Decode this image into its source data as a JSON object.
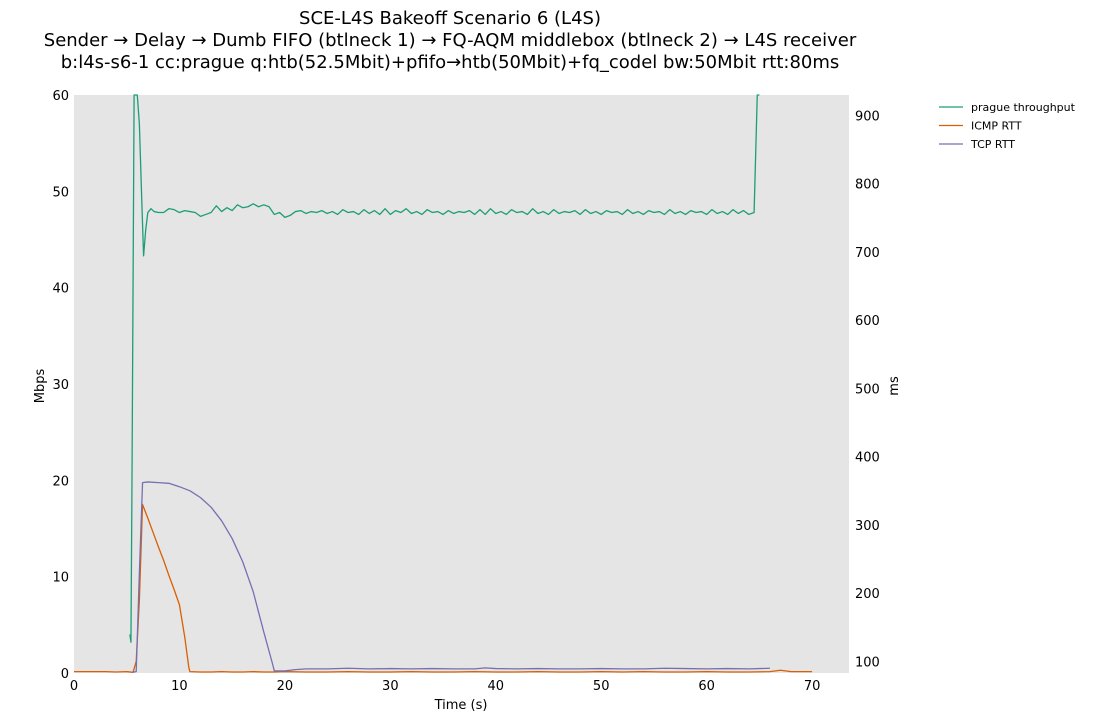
{
  "chart_data": {
    "type": "line",
    "title": [
      "SCE-L4S Bakeoff Scenario 6 (L4S)",
      "Sender → Delay → Dumb FIFO (btlneck 1) → FQ-AQM middlebox (btlneck 2) → L4S receiver",
      "b:l4s-s6-1 cc:prague q:htb(52.5Mbit)+pfifo→htb(50Mbit)+fq_codel bw:50Mbit rtt:80ms"
    ],
    "xlabel": "Time (s)",
    "ylabel_left": "Mbps",
    "ylabel_right": "ms",
    "xlim": [
      0,
      73.5
    ],
    "ylim_left": [
      0,
      60
    ],
    "ylim_right": [
      83,
      930
    ],
    "x_ticks": [
      0,
      10,
      20,
      30,
      40,
      50,
      60,
      70
    ],
    "y_ticks_left": [
      0,
      10,
      20,
      30,
      40,
      50,
      60
    ],
    "y_ticks_right": [
      100,
      200,
      300,
      400,
      500,
      600,
      700,
      800,
      900
    ],
    "grid": false,
    "background": "#e5e5e5",
    "legend_position": "outside-right",
    "series": [
      {
        "name": "prague throughput",
        "axis": "left",
        "color": "#1b9e77",
        "points": [
          [
            5.3,
            4.0
          ],
          [
            5.4,
            3.2
          ],
          [
            5.5,
            20
          ],
          [
            5.7,
            60
          ],
          [
            6.0,
            60
          ],
          [
            6.2,
            57
          ],
          [
            6.4,
            50
          ],
          [
            6.6,
            43.3
          ],
          [
            6.8,
            46
          ],
          [
            7.0,
            47.8
          ],
          [
            7.3,
            48.2
          ],
          [
            7.6,
            47.9
          ],
          [
            8.0,
            47.8
          ],
          [
            8.5,
            47.8
          ],
          [
            9.0,
            48.2
          ],
          [
            9.5,
            48.1
          ],
          [
            10.0,
            47.8
          ],
          [
            10.5,
            48.0
          ],
          [
            11.0,
            47.9
          ],
          [
            11.5,
            47.8
          ],
          [
            12.0,
            47.4
          ],
          [
            12.5,
            47.6
          ],
          [
            13.0,
            47.8
          ],
          [
            13.5,
            48.5
          ],
          [
            14.0,
            47.9
          ],
          [
            14.5,
            48.3
          ],
          [
            15.0,
            48.0
          ],
          [
            15.5,
            48.6
          ],
          [
            16.0,
            48.3
          ],
          [
            16.5,
            48.4
          ],
          [
            17.0,
            48.7
          ],
          [
            17.5,
            48.4
          ],
          [
            18.0,
            48.6
          ],
          [
            18.5,
            48.4
          ],
          [
            19.0,
            47.6
          ],
          [
            19.5,
            47.8
          ],
          [
            20.0,
            47.3
          ],
          [
            20.5,
            47.5
          ],
          [
            21.0,
            47.9
          ],
          [
            21.5,
            48.0
          ],
          [
            22.0,
            47.7
          ],
          [
            22.5,
            47.9
          ],
          [
            23.0,
            47.8
          ],
          [
            23.5,
            48.0
          ],
          [
            24.0,
            47.7
          ],
          [
            24.5,
            47.9
          ],
          [
            25.0,
            47.6
          ],
          [
            25.5,
            48.1
          ],
          [
            26.0,
            47.8
          ],
          [
            26.5,
            47.9
          ],
          [
            27.0,
            47.6
          ],
          [
            27.5,
            48.1
          ],
          [
            28.0,
            47.7
          ],
          [
            28.5,
            48.0
          ],
          [
            29.0,
            47.6
          ],
          [
            29.5,
            48.2
          ],
          [
            30.0,
            47.6
          ],
          [
            30.5,
            48.0
          ],
          [
            31.0,
            47.8
          ],
          [
            31.5,
            48.2
          ],
          [
            32.0,
            47.7
          ],
          [
            32.5,
            47.9
          ],
          [
            33.0,
            47.6
          ],
          [
            33.5,
            48.1
          ],
          [
            34.0,
            47.8
          ],
          [
            34.5,
            47.9
          ],
          [
            35.0,
            47.6
          ],
          [
            35.5,
            48.0
          ],
          [
            36.0,
            47.7
          ],
          [
            36.5,
            47.9
          ],
          [
            37.0,
            47.8
          ],
          [
            37.5,
            48.0
          ],
          [
            38.0,
            47.6
          ],
          [
            38.5,
            48.1
          ],
          [
            39.0,
            47.6
          ],
          [
            39.5,
            48.2
          ],
          [
            40.0,
            47.7
          ],
          [
            40.5,
            47.9
          ],
          [
            41.0,
            47.6
          ],
          [
            41.5,
            48.1
          ],
          [
            42.0,
            47.8
          ],
          [
            42.5,
            47.9
          ],
          [
            43.0,
            47.6
          ],
          [
            43.5,
            48.2
          ],
          [
            44.0,
            47.7
          ],
          [
            44.5,
            47.9
          ],
          [
            45.0,
            47.6
          ],
          [
            45.5,
            48.1
          ],
          [
            46.0,
            47.7
          ],
          [
            46.5,
            47.9
          ],
          [
            47.0,
            47.8
          ],
          [
            47.5,
            48.0
          ],
          [
            48.0,
            47.6
          ],
          [
            48.5,
            48.1
          ],
          [
            49.0,
            47.7
          ],
          [
            49.5,
            47.9
          ],
          [
            50.0,
            47.6
          ],
          [
            50.5,
            48.0
          ],
          [
            51.0,
            47.8
          ],
          [
            51.5,
            47.9
          ],
          [
            52.0,
            47.6
          ],
          [
            52.5,
            48.1
          ],
          [
            53.0,
            47.7
          ],
          [
            53.5,
            47.9
          ],
          [
            54.0,
            47.6
          ],
          [
            54.5,
            48.0
          ],
          [
            55.0,
            47.8
          ],
          [
            55.5,
            47.9
          ],
          [
            56.0,
            47.6
          ],
          [
            56.5,
            48.1
          ],
          [
            57.0,
            47.7
          ],
          [
            57.5,
            47.9
          ],
          [
            58.0,
            47.6
          ],
          [
            58.5,
            48.0
          ],
          [
            59.0,
            47.8
          ],
          [
            59.5,
            47.9
          ],
          [
            60.0,
            47.6
          ],
          [
            60.5,
            48.1
          ],
          [
            61.0,
            47.7
          ],
          [
            61.5,
            47.9
          ],
          [
            62.0,
            47.6
          ],
          [
            62.5,
            48.1
          ],
          [
            63.0,
            47.7
          ],
          [
            63.5,
            48.0
          ],
          [
            64.0,
            47.6
          ],
          [
            64.5,
            47.8
          ],
          [
            64.8,
            60
          ],
          [
            65.0,
            60
          ]
        ]
      },
      {
        "name": "ICMP RTT",
        "axis": "right",
        "color": "#d95f02",
        "points": [
          [
            0,
            85
          ],
          [
            1,
            85
          ],
          [
            2,
            85
          ],
          [
            3,
            85
          ],
          [
            4,
            84.5
          ],
          [
            5,
            85
          ],
          [
            5.6,
            84
          ],
          [
            5.9,
            100
          ],
          [
            6.2,
            190
          ],
          [
            6.5,
            330
          ],
          [
            7.0,
            310
          ],
          [
            7.5,
            289
          ],
          [
            8.0,
            268
          ],
          [
            8.5,
            248
          ],
          [
            9.0,
            226
          ],
          [
            9.5,
            205
          ],
          [
            10.0,
            183
          ],
          [
            10.5,
            136
          ],
          [
            10.9,
            90
          ],
          [
            11.0,
            85
          ],
          [
            12,
            84.5
          ],
          [
            13,
            84.5
          ],
          [
            14,
            85
          ],
          [
            15,
            84.5
          ],
          [
            16,
            84.5
          ],
          [
            17,
            85
          ],
          [
            18,
            84.5
          ],
          [
            19,
            84.5
          ],
          [
            20,
            85
          ],
          [
            22,
            84.5
          ],
          [
            24,
            84.5
          ],
          [
            26,
            85
          ],
          [
            28,
            84.5
          ],
          [
            30,
            84.5
          ],
          [
            32,
            85
          ],
          [
            34,
            84.5
          ],
          [
            36,
            84.5
          ],
          [
            38,
            85
          ],
          [
            40,
            84.5
          ],
          [
            42,
            84.5
          ],
          [
            44,
            85
          ],
          [
            46,
            84.5
          ],
          [
            48,
            84.5
          ],
          [
            50,
            85
          ],
          [
            52,
            84.5
          ],
          [
            54,
            85
          ],
          [
            56,
            84.5
          ],
          [
            58,
            84.5
          ],
          [
            60,
            85
          ],
          [
            62,
            84.5
          ],
          [
            64,
            84.5
          ],
          [
            66,
            85
          ],
          [
            67,
            87
          ],
          [
            68,
            85
          ],
          [
            70,
            85
          ]
        ]
      },
      {
        "name": "TCP RTT",
        "axis": "right",
        "color": "#7570b3",
        "points": [
          [
            5.5,
            84
          ],
          [
            5.9,
            85
          ],
          [
            6.2,
            230
          ],
          [
            6.5,
            362
          ],
          [
            7,
            363
          ],
          [
            8,
            362
          ],
          [
            9,
            361
          ],
          [
            10,
            356
          ],
          [
            11,
            350
          ],
          [
            12,
            340
          ],
          [
            13,
            326
          ],
          [
            14,
            306
          ],
          [
            15,
            280
          ],
          [
            16,
            246
          ],
          [
            17,
            202
          ],
          [
            18,
            143
          ],
          [
            18.8,
            98
          ],
          [
            19.0,
            86
          ],
          [
            20,
            86
          ],
          [
            21,
            88
          ],
          [
            22,
            89
          ],
          [
            24,
            89
          ],
          [
            26,
            90
          ],
          [
            28,
            89
          ],
          [
            30,
            89.5
          ],
          [
            32,
            89
          ],
          [
            34,
            89.5
          ],
          [
            36,
            89
          ],
          [
            38,
            89
          ],
          [
            39,
            90.5
          ],
          [
            40,
            89.5
          ],
          [
            42,
            89
          ],
          [
            44,
            89.5
          ],
          [
            46,
            89
          ],
          [
            48,
            89
          ],
          [
            50,
            89.5
          ],
          [
            52,
            89
          ],
          [
            54,
            89
          ],
          [
            56,
            90
          ],
          [
            58,
            89.5
          ],
          [
            60,
            89
          ],
          [
            62,
            89.5
          ],
          [
            64,
            89
          ],
          [
            66,
            90
          ]
        ]
      }
    ]
  }
}
